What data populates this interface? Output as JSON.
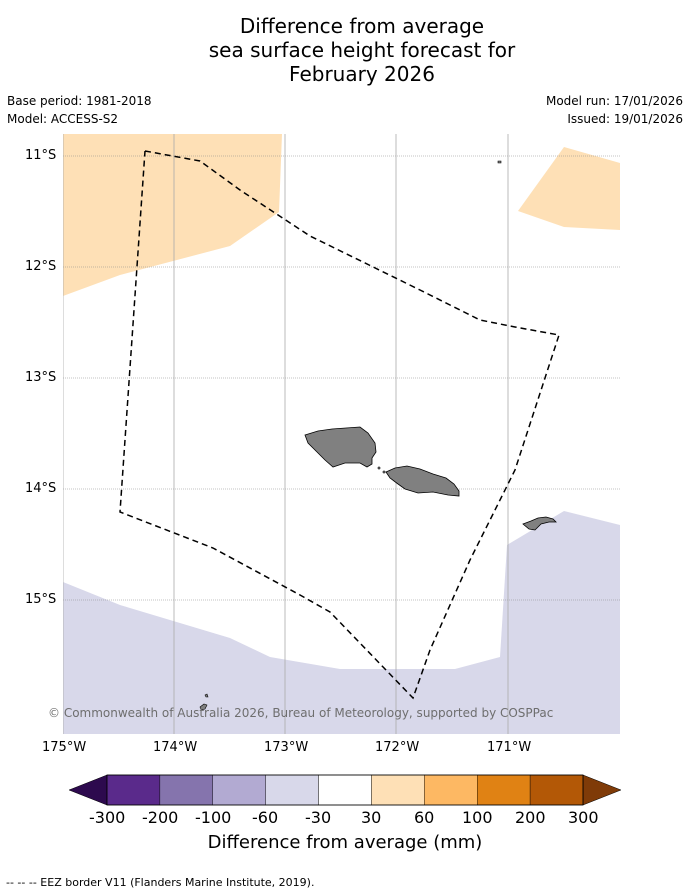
{
  "title": {
    "line1": "Difference from average",
    "line2": "sea surface height forecast for",
    "line3": "February 2026"
  },
  "meta": {
    "base_period": "Base period: 1981-2018",
    "model": "Model: ACCESS-S2",
    "model_run": "Model run: 17/01/2026",
    "issued": "Issued: 19/01/2026"
  },
  "map": {
    "extent": {
      "lon_min": -175,
      "lon_max": -170,
      "lat_min": -16.2,
      "lat_max": -10.8
    },
    "lat_labels": [
      "11°S",
      "12°S",
      "13°S",
      "14°S",
      "15°S"
    ],
    "lon_labels": [
      "175°W",
      "174°W",
      "173°W",
      "172°W",
      "171°W"
    ],
    "land_color": "#808080",
    "copyright": "© Commonwealth of Australia 2026, Bureau of Meteorology, supported by COSPPac"
  },
  "colorbar": {
    "title": "Difference from average (mm)",
    "ticks": [
      "-300",
      "-200",
      "-100",
      "-60",
      "-30",
      "30",
      "60",
      "100",
      "200",
      "300"
    ],
    "colors": [
      "#5a2a8b",
      "#8574ad",
      "#b2aad2",
      "#d8d8ea",
      "#ffffff",
      "#fee0b6",
      "#fdb863",
      "#e08214",
      "#b35806"
    ],
    "under_color": "#2d0a4e",
    "over_color": "#7f3b08"
  },
  "footnote": "-- -- -- EEZ border V11 (Flanders Marine Institute, 2019)."
}
